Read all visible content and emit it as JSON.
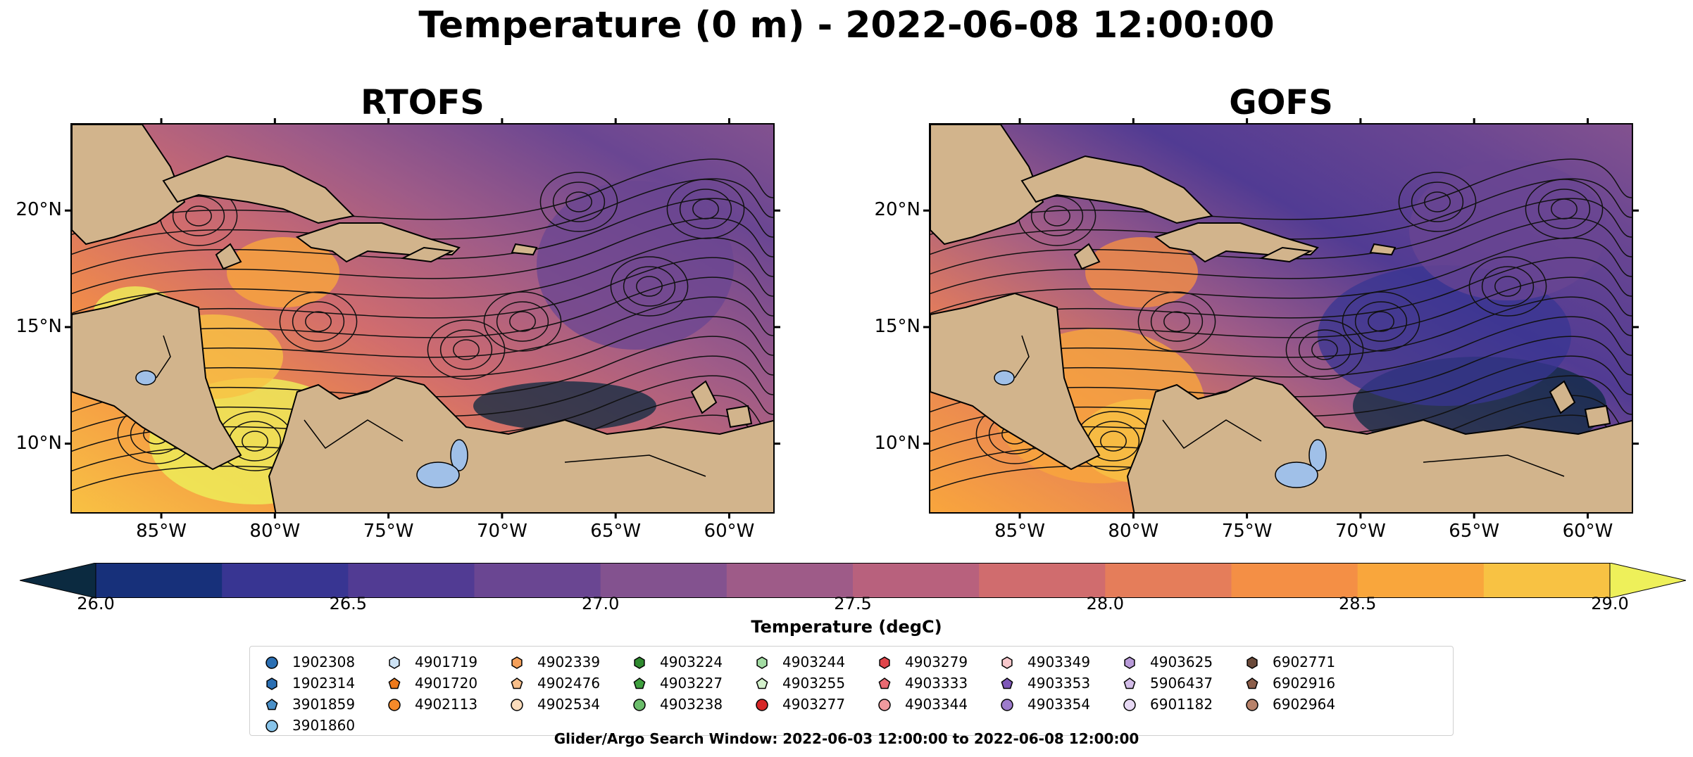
{
  "title": "Temperature (0 m) - 2022-06-08 12:00:00",
  "panels": [
    {
      "name": "RTOFS"
    },
    {
      "name": "GOFS"
    }
  ],
  "axes": {
    "lat_labels": [
      "20°N",
      "15°N",
      "10°N"
    ],
    "lon_labels": [
      "85°W",
      "80°W",
      "75°W",
      "70°W",
      "65°W",
      "60°W"
    ],
    "lat_values": [
      20,
      15,
      10
    ],
    "lon_values": [
      -85,
      -80,
      -75,
      -70,
      -65,
      -60
    ],
    "lon_range": [
      -89,
      -58
    ],
    "lat_range": [
      7,
      23.75
    ]
  },
  "colorbar": {
    "label": "Temperature (degC)",
    "ticks": [
      "26.0",
      "26.5",
      "27.0",
      "27.5",
      "28.0",
      "28.5",
      "29.0"
    ],
    "range": [
      26.0,
      29.0
    ],
    "extend": "both",
    "colors": [
      "#0b2a40",
      "#17307a",
      "#383592",
      "#513b93",
      "#6a4692",
      "#83528f",
      "#9e5b88",
      "#b8617d",
      "#d06c6e",
      "#e57d5a",
      "#f48f45",
      "#f9a63c",
      "#f8c243",
      "#eef05a"
    ]
  },
  "colors": {
    "land": "#d2b48c",
    "lake": "#a0c0e8",
    "background": "#ffffff"
  },
  "legend": {
    "items": [
      {
        "label": "1902308",
        "marker": "circle",
        "color": "#2b6fb3"
      },
      {
        "label": "1902314",
        "marker": "hexagon",
        "color": "#2b6fb3"
      },
      {
        "label": "3901859",
        "marker": "pentagon",
        "color": "#4a90c8"
      },
      {
        "label": "3901860",
        "marker": "circle",
        "color": "#88c4ea"
      },
      {
        "label": "4901719",
        "marker": "hexagon",
        "color": "#cde3f5"
      },
      {
        "label": "4901720",
        "marker": "pentagon",
        "color": "#ee7a1c"
      },
      {
        "label": "4902113",
        "marker": "circle",
        "color": "#f58a2a"
      },
      {
        "label": "4902339",
        "marker": "hexagon",
        "color": "#f5a05a"
      },
      {
        "label": "4902476",
        "marker": "pentagon",
        "color": "#f7be8a"
      },
      {
        "label": "4902534",
        "marker": "circle",
        "color": "#fbdcbc"
      },
      {
        "label": "4903224",
        "marker": "hexagon",
        "color": "#2f8a2f"
      },
      {
        "label": "4903227",
        "marker": "pentagon",
        "color": "#3fa03f"
      },
      {
        "label": "4903238",
        "marker": "circle",
        "color": "#6bbd6b"
      },
      {
        "label": "4903244",
        "marker": "hexagon",
        "color": "#a3dca3"
      },
      {
        "label": "4903255",
        "marker": "pentagon",
        "color": "#d4f1cc"
      },
      {
        "label": "4903277",
        "marker": "circle",
        "color": "#d62728"
      },
      {
        "label": "4903279",
        "marker": "hexagon",
        "color": "#e0454a"
      },
      {
        "label": "4903333",
        "marker": "pentagon",
        "color": "#ea6a72"
      },
      {
        "label": "4903344",
        "marker": "circle",
        "color": "#f09a9e"
      },
      {
        "label": "4903349",
        "marker": "hexagon",
        "color": "#f8c8cc"
      },
      {
        "label": "4903353",
        "marker": "pentagon",
        "color": "#7e57b8"
      },
      {
        "label": "4903354",
        "marker": "circle",
        "color": "#9d7ccc"
      },
      {
        "label": "4903625",
        "marker": "hexagon",
        "color": "#b89ad8"
      },
      {
        "label": "5906437",
        "marker": "pentagon",
        "color": "#d3bde8"
      },
      {
        "label": "6901182",
        "marker": "circle",
        "color": "#e7d9f4"
      },
      {
        "label": "6902771",
        "marker": "hexagon",
        "color": "#6b4a3a"
      },
      {
        "label": "6902916",
        "marker": "pentagon",
        "color": "#8c5e4a"
      },
      {
        "label": "6902964",
        "marker": "circle",
        "color": "#b8826a"
      }
    ]
  },
  "footer": "Glider/Argo Search Window: 2022-06-03 12:00:00 to 2022-06-08 12:00:00"
}
